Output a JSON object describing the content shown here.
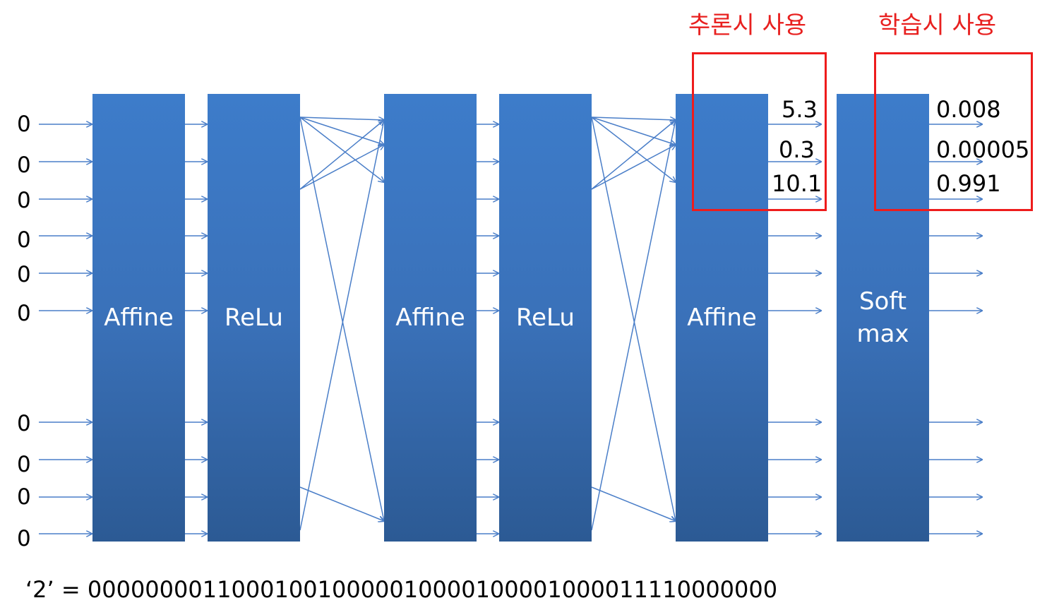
{
  "colors": {
    "layer_fill": "#3a71b9",
    "arrow": "#4a7ec8",
    "highlight": "#ee1c1c"
  },
  "layers": [
    {
      "name": "affine-1",
      "label": "Affine"
    },
    {
      "name": "relu-1",
      "label": "ReLu"
    },
    {
      "name": "affine-2",
      "label": "Affine"
    },
    {
      "name": "relu-2",
      "label": "ReLu"
    },
    {
      "name": "affine-3",
      "label": "Affine"
    },
    {
      "name": "softmax",
      "label": "Soft\nmax"
    }
  ],
  "input_values": [
    "0",
    "0",
    "0",
    "0",
    "0",
    "0",
    "0",
    "0",
    "0",
    "0"
  ],
  "affine_outputs": [
    "5.3",
    "0.3",
    "10.1"
  ],
  "softmax_outputs": [
    "0.008",
    "0.00005",
    "0.991"
  ],
  "inference_label": "추론시 사용",
  "training_label": "학습시 사용",
  "encoding_text": "‘2’ = 000000001100010010000010000100001000011110000000"
}
